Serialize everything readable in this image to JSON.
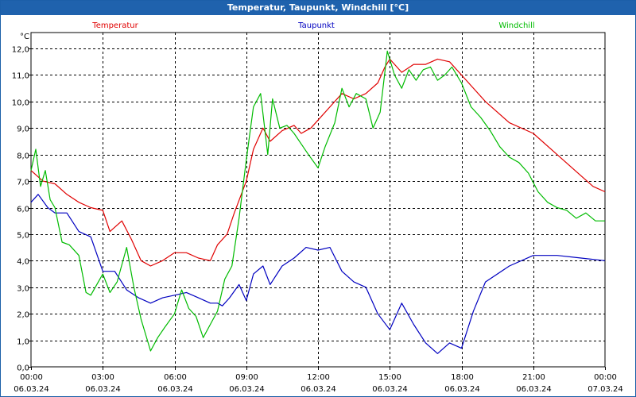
{
  "window": {
    "title": "Temperatur, Taupunkt, Windchill [°C]"
  },
  "chart_data": {
    "type": "line",
    "title": "Temperatur, Taupunkt, Windchill [°C]",
    "ylabel": "°C",
    "xlabel": "",
    "ylim": [
      0,
      12.6
    ],
    "xlim": [
      0,
      24
    ],
    "grid": true,
    "y_ticks": [
      "0,0",
      "1,0",
      "2,0",
      "3,0",
      "4,0",
      "5,0",
      "6,0",
      "7,0",
      "8,0",
      "9,0",
      "10,0",
      "11,0",
      "12,0"
    ],
    "x_ticks": [
      {
        "time": "00:00",
        "date": "06.03.24"
      },
      {
        "time": "03:00",
        "date": "06.03.24"
      },
      {
        "time": "06:00",
        "date": "06.03.24"
      },
      {
        "time": "09:00",
        "date": "06.03.24"
      },
      {
        "time": "12:00",
        "date": "06.03.24"
      },
      {
        "time": "15:00",
        "date": "06.03.24"
      },
      {
        "time": "18:00",
        "date": "06.03.24"
      },
      {
        "time": "21:00",
        "date": "06.03.24"
      },
      {
        "time": "00:00",
        "date": "07.03.24"
      }
    ],
    "series": [
      {
        "name": "Temperatur",
        "color": "#e00000",
        "x": [
          0,
          0.5,
          1,
          1.5,
          2,
          2.5,
          3,
          3.3,
          3.8,
          4.2,
          4.6,
          5,
          5.5,
          6,
          6.5,
          7,
          7.5,
          7.8,
          8.2,
          8.5,
          9,
          9.3,
          9.7,
          10,
          10.5,
          11,
          11.3,
          11.7,
          12,
          12.5,
          13,
          13.5,
          14,
          14.5,
          14.8,
          15,
          15.5,
          16,
          16.5,
          17,
          17.5,
          18,
          19,
          20,
          21,
          22,
          23,
          23.5,
          24
        ],
        "values": [
          7.4,
          7.0,
          6.9,
          6.5,
          6.2,
          6.0,
          5.9,
          5.1,
          5.5,
          4.8,
          4.0,
          3.8,
          4.0,
          4.3,
          4.3,
          4.1,
          4.0,
          4.6,
          5.0,
          5.8,
          7.0,
          8.2,
          9.0,
          8.5,
          8.9,
          9.1,
          8.8,
          9.0,
          9.3,
          9.8,
          10.3,
          10.1,
          10.3,
          10.7,
          11.3,
          11.6,
          11.1,
          11.4,
          11.4,
          11.6,
          11.5,
          11.0,
          10.0,
          9.2,
          8.8,
          8.0,
          7.2,
          6.8,
          6.6
        ]
      },
      {
        "name": "Taupunkt",
        "color": "#0000c0",
        "x": [
          0,
          0.3,
          0.7,
          1,
          1.5,
          2,
          2.5,
          3,
          3.5,
          4,
          4.5,
          5,
          5.5,
          6,
          6.5,
          7,
          7.5,
          7.8,
          8,
          8.3,
          8.7,
          9,
          9.3,
          9.7,
          10,
          10.5,
          11,
          11.5,
          12,
          12.5,
          13,
          13.5,
          14,
          14.5,
          15,
          15.5,
          16,
          16.5,
          17,
          17.5,
          18,
          18.5,
          19,
          20,
          21,
          22,
          23,
          24
        ],
        "values": [
          6.2,
          6.5,
          6.0,
          5.8,
          5.8,
          5.1,
          4.9,
          3.6,
          3.6,
          2.9,
          2.6,
          2.4,
          2.6,
          2.7,
          2.8,
          2.6,
          2.4,
          2.4,
          2.3,
          2.6,
          3.1,
          2.5,
          3.5,
          3.8,
          3.1,
          3.8,
          4.1,
          4.5,
          4.4,
          4.5,
          3.6,
          3.2,
          3.0,
          2.0,
          1.4,
          2.4,
          1.6,
          0.9,
          0.5,
          0.9,
          0.7,
          2.1,
          3.2,
          3.8,
          4.2,
          4.2,
          4.1,
          4.0
        ]
      },
      {
        "name": "Windchill",
        "color": "#00bb00",
        "x": [
          0,
          0.2,
          0.4,
          0.6,
          0.8,
          1,
          1.3,
          1.6,
          2,
          2.3,
          2.5,
          3,
          3.3,
          3.6,
          4,
          4.3,
          4.6,
          5,
          5.3,
          5.6,
          6,
          6.3,
          6.6,
          6.9,
          7.2,
          7.5,
          7.8,
          8.1,
          8.4,
          8.7,
          9,
          9.3,
          9.6,
          9.9,
          10.1,
          10.4,
          10.7,
          11,
          11.3,
          11.6,
          12,
          12.3,
          12.7,
          13,
          13.3,
          13.6,
          14,
          14.3,
          14.6,
          14.9,
          15.2,
          15.5,
          15.8,
          16.1,
          16.4,
          16.7,
          17,
          17.3,
          17.6,
          18,
          18.4,
          18.8,
          19.2,
          19.6,
          20,
          20.4,
          20.8,
          21.2,
          21.6,
          22,
          22.4,
          22.8,
          23.2,
          23.6,
          24
        ],
        "values": [
          7.4,
          8.2,
          6.8,
          7.4,
          6.3,
          6.0,
          4.7,
          4.6,
          4.2,
          2.8,
          2.7,
          3.5,
          2.8,
          3.2,
          4.5,
          3.0,
          1.8,
          0.6,
          1.1,
          1.5,
          2.0,
          2.9,
          2.2,
          1.9,
          1.1,
          1.6,
          2.1,
          3.3,
          3.8,
          5.6,
          7.8,
          9.8,
          10.3,
          8.0,
          10.1,
          9.0,
          9.1,
          8.8,
          8.4,
          8.0,
          7.5,
          8.3,
          9.2,
          10.5,
          9.8,
          10.3,
          10.1,
          9.0,
          9.6,
          11.9,
          11.0,
          10.5,
          11.2,
          10.8,
          11.2,
          11.3,
          10.8,
          11.0,
          11.3,
          10.7,
          9.8,
          9.4,
          8.9,
          8.3,
          7.9,
          7.7,
          7.3,
          6.6,
          6.2,
          6.0,
          5.9,
          5.6,
          5.8,
          5.5,
          5.5
        ]
      }
    ]
  }
}
